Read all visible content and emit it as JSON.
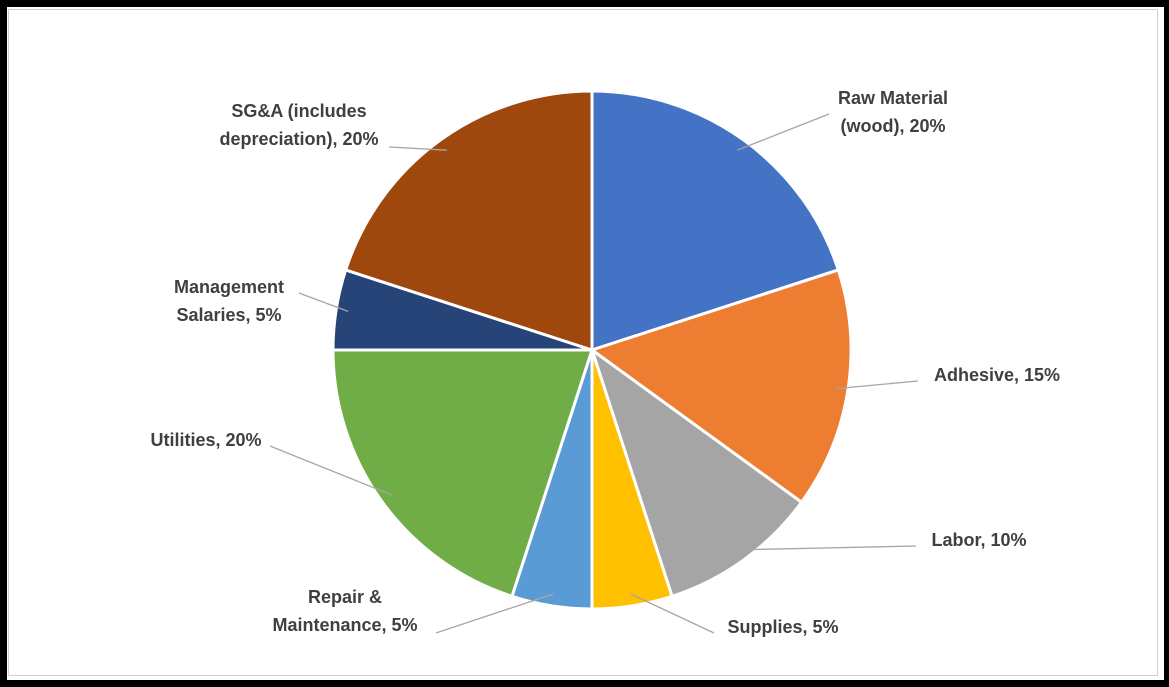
{
  "chart_data": {
    "type": "pie",
    "title": "",
    "slices": [
      {
        "label": "Raw Material (wood)",
        "value": 20,
        "color": "#4472c4",
        "data_label": [
          "Raw Material",
          "(wood), 20%"
        ]
      },
      {
        "label": "Adhesive",
        "value": 15,
        "color": "#ed7d31",
        "data_label": [
          "Adhesive, 15%"
        ]
      },
      {
        "label": "Labor",
        "value": 10,
        "color": "#a5a5a5",
        "data_label": [
          "Labor, 10%"
        ]
      },
      {
        "label": "Supplies",
        "value": 5,
        "color": "#ffc000",
        "data_label": [
          "Supplies, 5%"
        ]
      },
      {
        "label": "Repair & Maintenance",
        "value": 5,
        "color": "#5b9bd5",
        "data_label": [
          "Repair &",
          "Maintenance, 5%"
        ]
      },
      {
        "label": "Utilities",
        "value": 20,
        "color": "#70ad47",
        "data_label": [
          "Utilities, 20%"
        ]
      },
      {
        "label": "Management Salaries",
        "value": 5,
        "color": "#264478",
        "data_label": [
          "Management",
          "Salaries, 5%"
        ]
      },
      {
        "label": "SG&A (includes depreciation)",
        "value": 20,
        "color": "#9e480e",
        "data_label": [
          "SG&A (includes",
          "depreciation), 20%"
        ]
      }
    ],
    "legend": "none",
    "data_labels": "outside with leader lines"
  }
}
